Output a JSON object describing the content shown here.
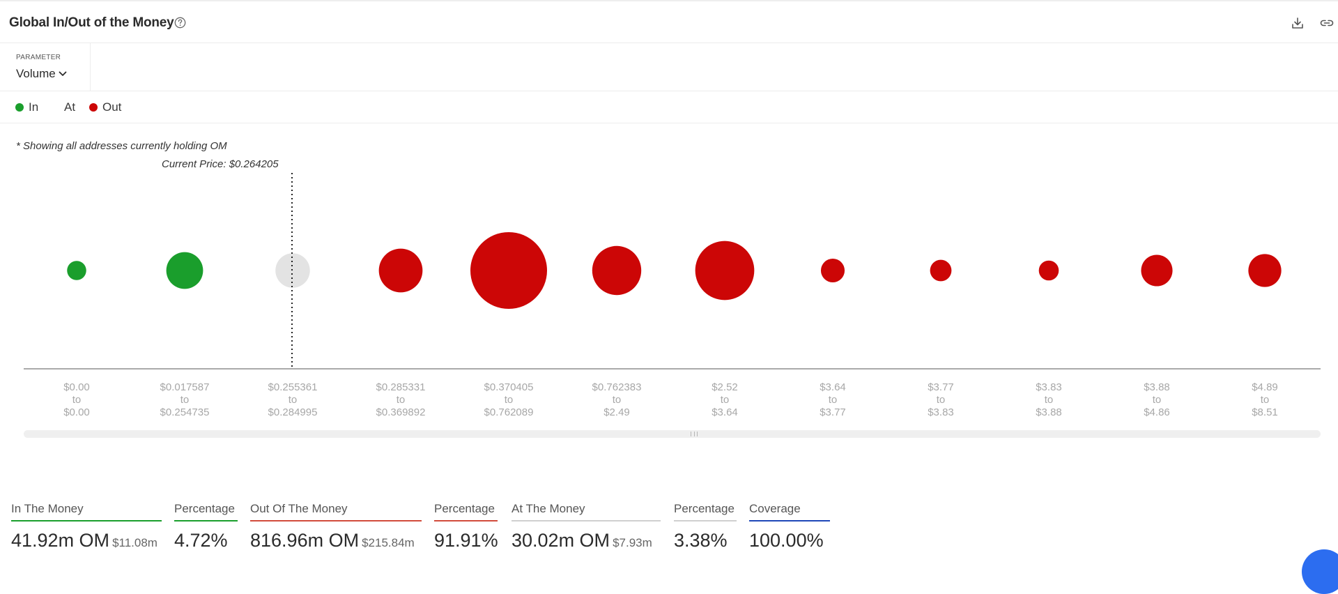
{
  "header": {
    "title": "Global In/Out of the Money",
    "icons": [
      "help-circle-icon",
      "download-icon",
      "link-icon"
    ]
  },
  "parameter": {
    "label": "PARAMETER",
    "value": "Volume"
  },
  "legend": [
    {
      "label": "In",
      "color": "#1a9e2c"
    },
    {
      "label": "At",
      "color": ""
    },
    {
      "label": "Out",
      "color": "#cc0606"
    }
  ],
  "note": "* Showing all addresses currently holding OM",
  "current_price_label": "Current Price: $0.264205",
  "chart_data": {
    "type": "bubble",
    "current_price": 0.264205,
    "colors": {
      "in": "#1a9e2c",
      "at": "#e3e3e3",
      "out": "#cc0606"
    },
    "categories": [
      {
        "from": "$0.00",
        "to": "$0.00",
        "status": "in",
        "relative_size": 0.25
      },
      {
        "from": "$0.017587",
        "to": "$0.254735",
        "status": "in",
        "relative_size": 0.48
      },
      {
        "from": "$0.255361",
        "to": "$0.284995",
        "status": "at",
        "relative_size": 0.45
      },
      {
        "from": "$0.285331",
        "to": "$0.369892",
        "status": "out",
        "relative_size": 0.57
      },
      {
        "from": "$0.370405",
        "to": "$0.762089",
        "status": "out",
        "relative_size": 1.0
      },
      {
        "from": "$0.762383",
        "to": "$2.49",
        "status": "out",
        "relative_size": 0.64
      },
      {
        "from": "$2.52",
        "to": "$3.64",
        "status": "out",
        "relative_size": 0.77
      },
      {
        "from": "$3.64",
        "to": "$3.77",
        "status": "out",
        "relative_size": 0.31
      },
      {
        "from": "$3.77",
        "to": "$3.83",
        "status": "out",
        "relative_size": 0.28
      },
      {
        "from": "$3.83",
        "to": "$3.88",
        "status": "out",
        "relative_size": 0.26
      },
      {
        "from": "$3.88",
        "to": "$4.86",
        "status": "out",
        "relative_size": 0.41
      },
      {
        "from": "$4.89",
        "to": "$8.51",
        "status": "out",
        "relative_size": 0.43
      }
    ],
    "to_word": "to"
  },
  "summary": [
    {
      "label": "In The Money",
      "value": "41.92m OM",
      "sub": "$11.08m",
      "underline": "#1a9e2c"
    },
    {
      "label": "Percentage",
      "value": "4.72%",
      "sub": "",
      "underline": "#1a9e2c"
    },
    {
      "label": "Out Of The Money",
      "value": "816.96m OM",
      "sub": "$215.84m",
      "underline": "#d14a3a"
    },
    {
      "label": "Percentage",
      "value": "91.91%",
      "sub": "",
      "underline": "#d14a3a"
    },
    {
      "label": "At The Money",
      "value": "30.02m OM",
      "sub": "$7.93m",
      "underline": "#cfcfcf"
    },
    {
      "label": "Percentage",
      "value": "3.38%",
      "sub": "",
      "underline": "#cfcfcf"
    },
    {
      "label": "Coverage",
      "value": "100.00%",
      "sub": "",
      "underline": "#1e47b8"
    }
  ]
}
